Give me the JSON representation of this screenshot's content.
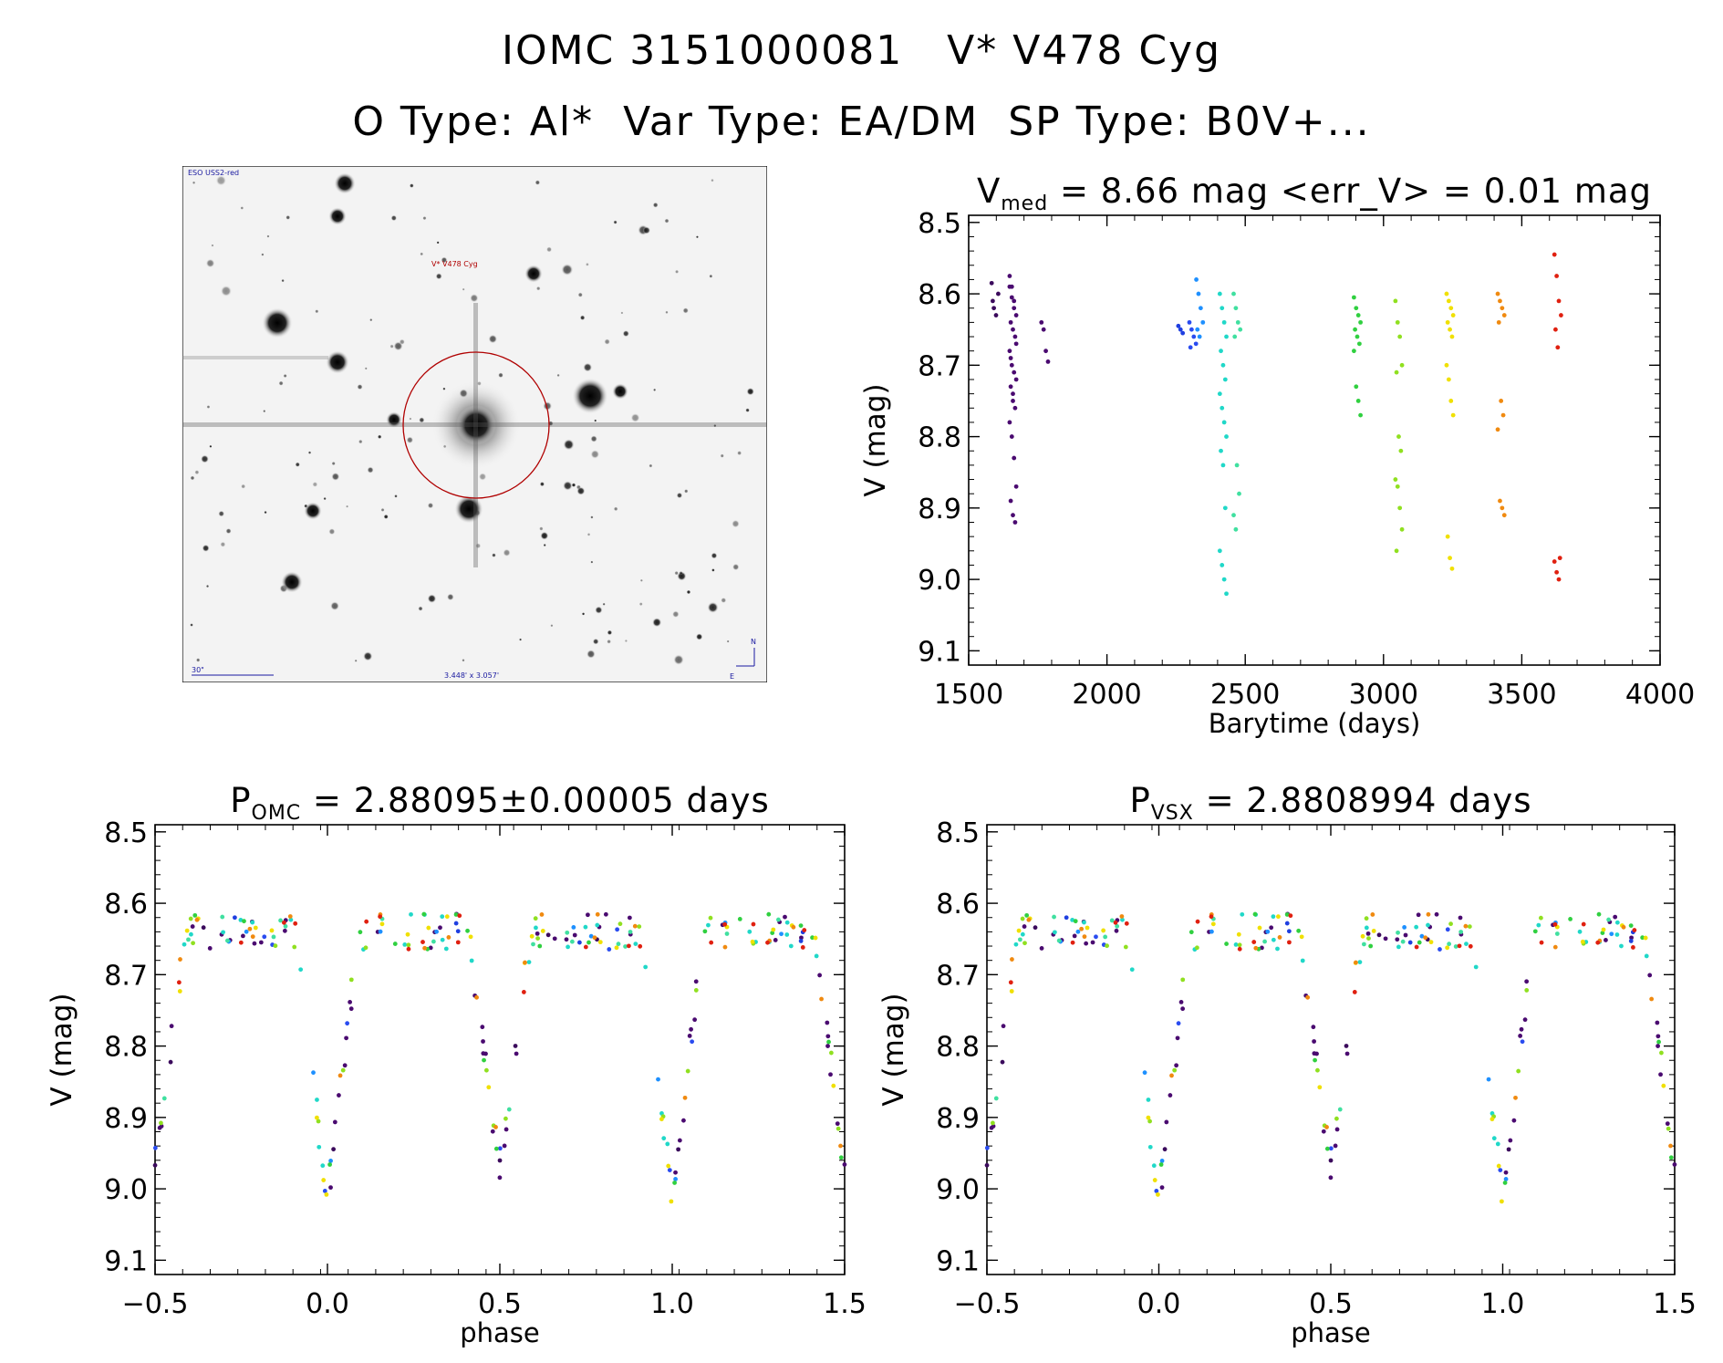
{
  "title": {
    "line1": "IOMC 3151000081   V* V478 Cyg",
    "line2": "O Type: Al*  Var Type: EA/DM  SP Type: B0V+..."
  },
  "finder_chart": {
    "survey_label": "ESO USS2-red",
    "target_label": "V* V478 Cyg",
    "scale_label": "30\"",
    "field_size_label": "3.448' x 3.057'",
    "north_label": "N",
    "east_label": "E"
  },
  "colors": {
    "axis": "#000000",
    "circle": "#b00000",
    "label_blue": "#1a1aa0",
    "label_red": "#b00000"
  },
  "chart_data": [
    {
      "id": "lightcurve",
      "type": "scatter",
      "title_main": "V",
      "title_sub": "med",
      "title_rest": " = 8.66 mag <err_V> = 0.01 mag",
      "xlabel": "Barytime (days)",
      "ylabel": "V (mag)",
      "xlim": [
        1500,
        4000
      ],
      "ylim": [
        9.12,
        8.49
      ],
      "xticks": [
        1500,
        2000,
        2500,
        3000,
        3500,
        4000
      ],
      "yticks": [
        8.5,
        8.6,
        8.7,
        8.8,
        8.9,
        9.0,
        9.1
      ],
      "grid": false,
      "clusters": [
        {
          "x": 1595,
          "y": [
            8.585,
            8.62,
            8.63,
            8.6,
            8.61
          ],
          "color": "#3b0a5c"
        },
        {
          "x": 1660,
          "y": [
            8.575,
            8.59,
            8.61,
            8.63,
            8.64,
            8.65,
            8.66,
            8.68,
            8.7,
            8.71,
            8.72,
            8.73,
            8.74,
            8.76,
            8.78,
            8.8,
            8.83,
            8.87,
            8.89,
            8.91,
            8.92,
            8.59,
            8.605,
            8.62,
            8.67,
            8.69,
            8.75
          ],
          "color": "#4a0a70"
        },
        {
          "x": 1775,
          "y": [
            8.64,
            8.65,
            8.68,
            8.695
          ],
          "color": "#4a0a70"
        },
        {
          "x": 2270,
          "y": [
            8.645,
            8.65,
            8.655
          ],
          "color": "#1f3fe0"
        },
        {
          "x": 2310,
          "y": [
            8.64,
            8.65,
            8.66,
            8.67,
            8.675
          ],
          "color": "#2a4cf0"
        },
        {
          "x": 2335,
          "y": [
            8.58,
            8.6,
            8.62,
            8.64,
            8.65,
            8.66
          ],
          "color": "#1e90ff"
        },
        {
          "x": 2420,
          "y": [
            8.6,
            8.62,
            8.64,
            8.66,
            8.68,
            8.7,
            8.72,
            8.74,
            8.76,
            8.78,
            8.8,
            8.82,
            8.84,
            8.9,
            8.96,
            8.98,
            9.0,
            9.02
          ],
          "color": "#20d8c8"
        },
        {
          "x": 2470,
          "y": [
            8.6,
            8.62,
            8.64,
            8.65,
            8.66,
            8.84,
            8.88,
            8.91,
            8.93
          ],
          "color": "#40e0a0"
        },
        {
          "x": 2905,
          "y": [
            8.605,
            8.62,
            8.63,
            8.64,
            8.65,
            8.66,
            8.67,
            8.68,
            8.73,
            8.75,
            8.77
          ],
          "color": "#30d040"
        },
        {
          "x": 3055,
          "y": [
            8.61,
            8.64,
            8.66,
            8.7,
            8.71,
            8.8,
            8.82,
            8.86,
            8.87,
            8.9,
            8.93,
            8.96
          ],
          "color": "#90e020"
        },
        {
          "x": 3240,
          "y": [
            8.6,
            8.61,
            8.62,
            8.63,
            8.64,
            8.65,
            8.66,
            8.7,
            8.72,
            8.75,
            8.77,
            8.94,
            8.97,
            8.985
          ],
          "color": "#f0e000"
        },
        {
          "x": 3425,
          "y": [
            8.6,
            8.61,
            8.62,
            8.63,
            8.64,
            8.75,
            8.77,
            8.79,
            8.89,
            8.9,
            8.91
          ],
          "color": "#f08a10"
        },
        {
          "x": 3630,
          "y": [
            8.545,
            8.575,
            8.61,
            8.63,
            8.65,
            8.675,
            8.97,
            8.975,
            8.99,
            9.0
          ],
          "color": "#e02010"
        }
      ]
    },
    {
      "id": "phase_omc",
      "type": "scatter",
      "title_main": "P",
      "title_sub": "OMC",
      "title_rest": " = 2.88095±0.00005 days",
      "xlabel": "phase",
      "ylabel": "V (mag)",
      "xlim": [
        -0.5,
        1.5
      ],
      "ylim": [
        9.12,
        8.49
      ],
      "xticks": [
        -0.5,
        0.0,
        0.5,
        1.0,
        1.5
      ],
      "xtick_labels": [
        "−0.5",
        "0.0",
        "0.5",
        "1.0",
        "1.5"
      ],
      "yticks": [
        8.5,
        8.6,
        8.7,
        8.8,
        8.9,
        9.0,
        9.1
      ],
      "grid": false,
      "folded_points": [
        {
          "p": 0.03,
          "v": 8.82,
          "c": "#20d8c8"
        },
        {
          "p": 0.05,
          "v": 8.78,
          "c": "#4a0a70"
        },
        {
          "p": -0.035,
          "v": 8.88,
          "c": "#90e020"
        },
        {
          "p": -0.02,
          "v": 8.92,
          "c": "#f08a10"
        },
        {
          "p": 0.0,
          "v": 9.0,
          "c": "#20d8c8"
        },
        {
          "p": 0.01,
          "v": 9.02,
          "c": "#20d8c8"
        },
        {
          "p": 0.06,
          "v": 8.9,
          "c": "#e02010"
        },
        {
          "p": 0.02,
          "v": 8.96,
          "c": "#20d8c8"
        },
        {
          "p": -0.48,
          "v": 8.96,
          "c": "#f0e000"
        },
        {
          "p": 0.48,
          "v": 8.96,
          "c": "#f0e000"
        }
      ]
    },
    {
      "id": "phase_vsx",
      "type": "scatter",
      "title_main": "P",
      "title_sub": "VSX",
      "title_rest": " = 2.8808994 days",
      "xlabel": "phase",
      "ylabel": "V (mag)",
      "xlim": [
        -0.5,
        1.5
      ],
      "ylim": [
        9.12,
        8.49
      ],
      "xticks": [
        -0.5,
        0.0,
        0.5,
        1.0,
        1.5
      ],
      "xtick_labels": [
        "−0.5",
        "0.0",
        "0.5",
        "1.0",
        "1.5"
      ],
      "yticks": [
        8.5,
        8.6,
        8.7,
        8.8,
        8.9,
        9.0,
        9.1
      ],
      "grid": false
    }
  ]
}
